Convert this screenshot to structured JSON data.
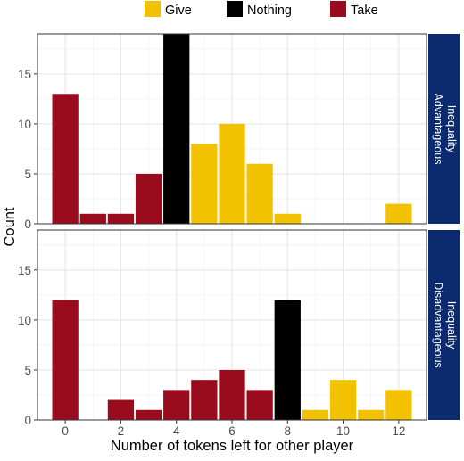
{
  "chart_data": {
    "type": "bar",
    "title": "",
    "xlabel": "Number of tokens left for other player",
    "ylabel": "Count",
    "xlim": [
      -1,
      13
    ],
    "ylim": [
      0,
      19
    ],
    "x_ticks": [
      0,
      2,
      4,
      6,
      8,
      10,
      12
    ],
    "y_ticks": [
      0,
      5,
      10,
      15
    ],
    "grid": true,
    "legend": {
      "position": "top",
      "entries": [
        {
          "name": "Give",
          "color": "#F2C200"
        },
        {
          "name": "Nothing",
          "color": "#000000"
        },
        {
          "name": "Take",
          "color": "#9B0B1E"
        }
      ]
    },
    "facets": [
      {
        "label_line1": "Advantageous",
        "label_line2": "Inequality",
        "strip_color": "#0B2A6F",
        "bars": [
          {
            "x": 0,
            "value": 13,
            "group": "Take"
          },
          {
            "x": 1,
            "value": 1,
            "group": "Take"
          },
          {
            "x": 2,
            "value": 1,
            "group": "Take"
          },
          {
            "x": 3,
            "value": 5,
            "group": "Take"
          },
          {
            "x": 4,
            "value": 19,
            "group": "Nothing"
          },
          {
            "x": 5,
            "value": 8,
            "group": "Give"
          },
          {
            "x": 6,
            "value": 10,
            "group": "Give"
          },
          {
            "x": 7,
            "value": 6,
            "group": "Give"
          },
          {
            "x": 8,
            "value": 1,
            "group": "Give"
          },
          {
            "x": 12,
            "value": 2,
            "group": "Give"
          }
        ]
      },
      {
        "label_line1": "Disadvantageous",
        "label_line2": "Inequality",
        "strip_color": "#0B2A6F",
        "bars": [
          {
            "x": 0,
            "value": 12,
            "group": "Take"
          },
          {
            "x": 2,
            "value": 2,
            "group": "Take"
          },
          {
            "x": 3,
            "value": 1,
            "group": "Take"
          },
          {
            "x": 4,
            "value": 3,
            "group": "Take"
          },
          {
            "x": 5,
            "value": 4,
            "group": "Take"
          },
          {
            "x": 6,
            "value": 5,
            "group": "Take"
          },
          {
            "x": 7,
            "value": 3,
            "group": "Take"
          },
          {
            "x": 8,
            "value": 12,
            "group": "Nothing"
          },
          {
            "x": 9,
            "value": 1,
            "group": "Give"
          },
          {
            "x": 10,
            "value": 4,
            "group": "Give"
          },
          {
            "x": 11,
            "value": 1,
            "group": "Give"
          },
          {
            "x": 12,
            "value": 3,
            "group": "Give"
          }
        ]
      }
    ]
  }
}
